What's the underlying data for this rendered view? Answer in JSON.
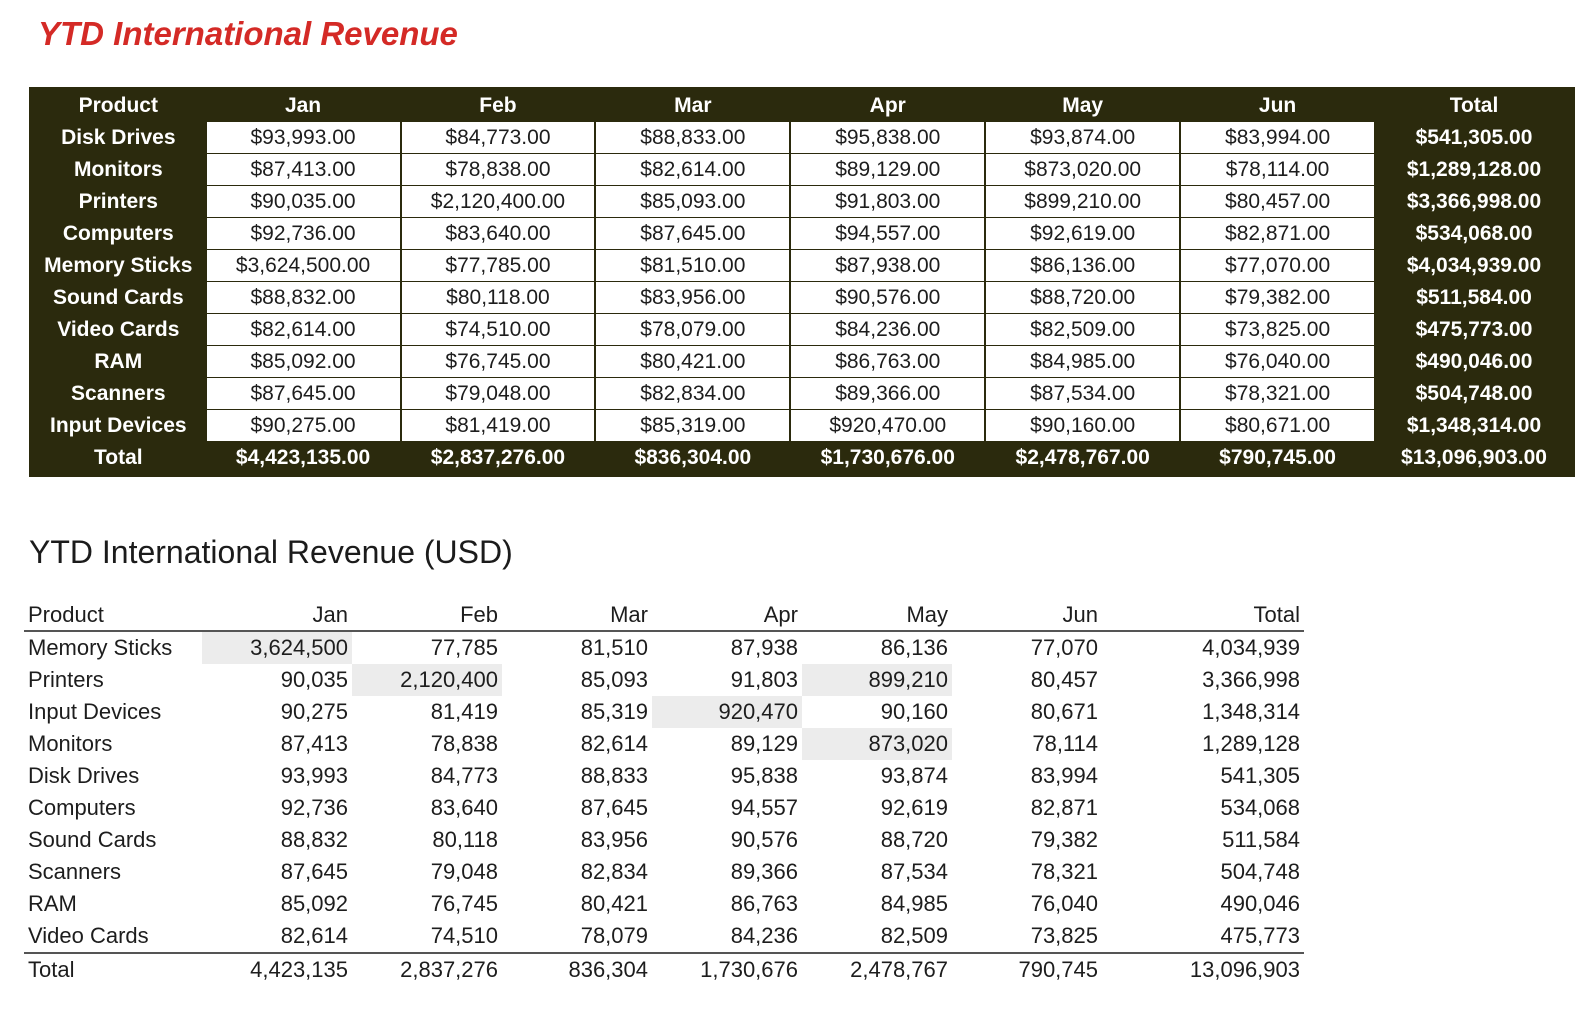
{
  "report1": {
    "title": "YTD International Revenue",
    "columns": [
      "Product",
      "Jan",
      "Feb",
      "Mar",
      "Apr",
      "May",
      "Jun",
      "Total"
    ],
    "rows": [
      [
        "Disk Drives",
        "$93,993.00",
        "$84,773.00",
        "$88,833.00",
        "$95,838.00",
        "$93,874.00",
        "$83,994.00",
        "$541,305.00"
      ],
      [
        "Monitors",
        "$87,413.00",
        "$78,838.00",
        "$82,614.00",
        "$89,129.00",
        "$873,020.00",
        "$78,114.00",
        "$1,289,128.00"
      ],
      [
        "Printers",
        "$90,035.00",
        "$2,120,400.00",
        "$85,093.00",
        "$91,803.00",
        "$899,210.00",
        "$80,457.00",
        "$3,366,998.00"
      ],
      [
        "Computers",
        "$92,736.00",
        "$83,640.00",
        "$87,645.00",
        "$94,557.00",
        "$92,619.00",
        "$82,871.00",
        "$534,068.00"
      ],
      [
        "Memory Sticks",
        "$3,624,500.00",
        "$77,785.00",
        "$81,510.00",
        "$87,938.00",
        "$86,136.00",
        "$77,070.00",
        "$4,034,939.00"
      ],
      [
        "Sound Cards",
        "$88,832.00",
        "$80,118.00",
        "$83,956.00",
        "$90,576.00",
        "$88,720.00",
        "$79,382.00",
        "$511,584.00"
      ],
      [
        "Video Cards",
        "$82,614.00",
        "$74,510.00",
        "$78,079.00",
        "$84,236.00",
        "$82,509.00",
        "$73,825.00",
        "$475,773.00"
      ],
      [
        "RAM",
        "$85,092.00",
        "$76,745.00",
        "$80,421.00",
        "$86,763.00",
        "$84,985.00",
        "$76,040.00",
        "$490,046.00"
      ],
      [
        "Scanners",
        "$87,645.00",
        "$79,048.00",
        "$82,834.00",
        "$89,366.00",
        "$87,534.00",
        "$78,321.00",
        "$504,748.00"
      ],
      [
        "Input Devices",
        "$90,275.00",
        "$81,419.00",
        "$85,319.00",
        "$920,470.00",
        "$90,160.00",
        "$80,671.00",
        "$1,348,314.00"
      ]
    ],
    "total_row": [
      "Total",
      "$4,423,135.00",
      "$2,837,276.00",
      "$836,304.00",
      "$1,730,676.00",
      "$2,478,767.00",
      "$790,745.00",
      "$13,096,903.00"
    ]
  },
  "report2": {
    "title": "YTD International Revenue (USD)",
    "columns": [
      "Product",
      "Jan",
      "Feb",
      "Mar",
      "Apr",
      "May",
      "Jun",
      "Total"
    ],
    "rows": [
      {
        "cells": [
          "Memory Sticks",
          "3,624,500",
          "77,785",
          "81,510",
          "87,938",
          "86,136",
          "77,070",
          "4,034,939"
        ],
        "highlight": [
          1
        ]
      },
      {
        "cells": [
          "Printers",
          "90,035",
          "2,120,400",
          "85,093",
          "91,803",
          "899,210",
          "80,457",
          "3,366,998"
        ],
        "highlight": [
          2,
          5
        ]
      },
      {
        "cells": [
          "Input Devices",
          "90,275",
          "81,419",
          "85,319",
          "920,470",
          "90,160",
          "80,671",
          "1,348,314"
        ],
        "highlight": [
          4
        ]
      },
      {
        "cells": [
          "Monitors",
          "87,413",
          "78,838",
          "82,614",
          "89,129",
          "873,020",
          "78,114",
          "1,289,128"
        ],
        "highlight": [
          5
        ]
      },
      {
        "cells": [
          "Disk Drives",
          "93,993",
          "84,773",
          "88,833",
          "95,838",
          "93,874",
          "83,994",
          "541,305"
        ],
        "highlight": []
      },
      {
        "cells": [
          "Computers",
          "92,736",
          "83,640",
          "87,645",
          "94,557",
          "92,619",
          "82,871",
          "534,068"
        ],
        "highlight": []
      },
      {
        "cells": [
          "Sound Cards",
          "88,832",
          "80,118",
          "83,956",
          "90,576",
          "88,720",
          "79,382",
          "511,584"
        ],
        "highlight": []
      },
      {
        "cells": [
          "Scanners",
          "87,645",
          "79,048",
          "82,834",
          "89,366",
          "87,534",
          "78,321",
          "504,748"
        ],
        "highlight": []
      },
      {
        "cells": [
          "RAM",
          "85,092",
          "76,745",
          "80,421",
          "86,763",
          "84,985",
          "76,040",
          "490,046"
        ],
        "highlight": []
      },
      {
        "cells": [
          "Video Cards",
          "82,614",
          "74,510",
          "78,079",
          "84,236",
          "82,509",
          "73,825",
          "475,773"
        ],
        "highlight": []
      }
    ],
    "total_row": [
      "Total",
      "4,423,135",
      "2,837,276",
      "836,304",
      "1,730,676",
      "2,478,767",
      "790,745",
      "13,096,903"
    ]
  },
  "colors": {
    "title_red": "#d42a26",
    "header_dark": "#2b2a0d",
    "highlight_gray": "#ececec"
  }
}
